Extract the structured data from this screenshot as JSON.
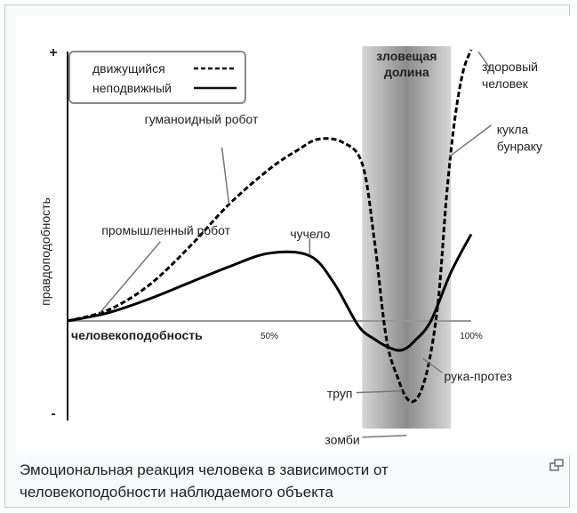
{
  "caption": "Эмоциональная реакция человека в зависимости от человекоподобности наблюдаемого объекта",
  "enlarge_icon": "enlarge-icon",
  "chart_data": {
    "type": "line",
    "title": "",
    "xlabel": "человекоподобность",
    "ylabel": "правдоподобность",
    "x_ticks": [
      "50%",
      "100%"
    ],
    "y_ticks": [
      "+",
      "-"
    ],
    "xlim": [
      0,
      100
    ],
    "ylim": [
      -1,
      1
    ],
    "shaded_region": {
      "label": "зловещая\nдолина",
      "x_range": [
        73,
        95
      ]
    },
    "legend": {
      "position": "top-left",
      "entries": [
        {
          "label": "движущийся",
          "style": "dashed"
        },
        {
          "label": "неподвижный",
          "style": "solid"
        }
      ]
    },
    "series": [
      {
        "name": "движущийся",
        "style": "dashed",
        "points": [
          [
            0,
            0
          ],
          [
            10,
            0.04
          ],
          [
            20,
            0.13
          ],
          [
            30,
            0.27
          ],
          [
            40,
            0.43
          ],
          [
            50,
            0.56
          ],
          [
            57,
            0.63
          ],
          [
            62,
            0.67
          ],
          [
            68,
            0.66
          ],
          [
            73,
            0.58
          ],
          [
            76,
            0.3
          ],
          [
            79,
            -0.2
          ],
          [
            82,
            -0.65
          ],
          [
            84,
            -0.85
          ],
          [
            86,
            -0.88
          ],
          [
            88,
            -0.72
          ],
          [
            90,
            -0.35
          ],
          [
            92,
            0.1
          ],
          [
            94,
            0.48
          ],
          [
            96,
            0.75
          ],
          [
            98,
            0.92
          ],
          [
            100,
            1.0
          ]
        ]
      },
      {
        "name": "неподвижный",
        "style": "solid",
        "points": [
          [
            0,
            0
          ],
          [
            10,
            0.03
          ],
          [
            20,
            0.08
          ],
          [
            30,
            0.14
          ],
          [
            40,
            0.2
          ],
          [
            50,
            0.25
          ],
          [
            60,
            0.24
          ],
          [
            66,
            0.14
          ],
          [
            72,
            -0.05
          ],
          [
            76,
            -0.2
          ],
          [
            80,
            -0.3
          ],
          [
            83,
            -0.32
          ],
          [
            86,
            -0.22
          ],
          [
            90,
            0
          ],
          [
            95,
            0.18
          ],
          [
            100,
            0.32
          ]
        ]
      }
    ],
    "annotations": [
      {
        "text": "здоровый\nчеловек",
        "x": 100,
        "y": 1.0
      },
      {
        "text": "гуманоидный робот",
        "x": 40,
        "y": 0.43
      },
      {
        "text": "промышленный робот",
        "x": 8,
        "y": 0.03
      },
      {
        "text": "чучело",
        "x": 60,
        "y": 0.24
      },
      {
        "text": "кукла\nбунраку",
        "x": 94,
        "y": 0.48
      },
      {
        "text": "труп",
        "x": 83,
        "y": -0.32
      },
      {
        "text": "рука-протез",
        "x": 88,
        "y": -0.1
      },
      {
        "text": "зомби",
        "x": 84,
        "y": -0.85
      }
    ]
  }
}
